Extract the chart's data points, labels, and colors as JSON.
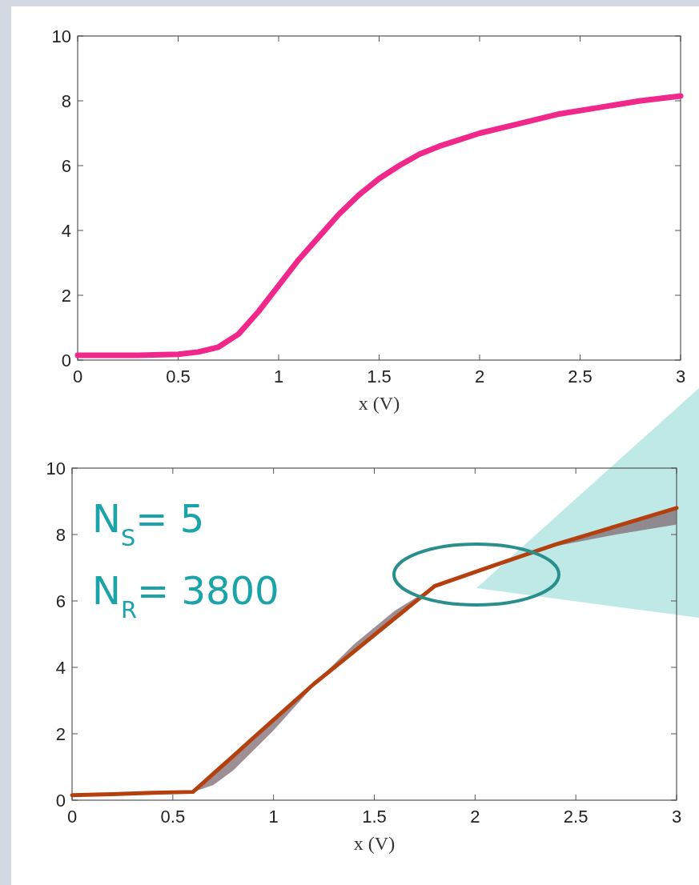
{
  "chart_data": [
    {
      "type": "line",
      "xlabel": "x (V)",
      "xlim": [
        0,
        3
      ],
      "ylim": [
        0,
        10
      ],
      "xticks": [
        0,
        0.5,
        1,
        1.5,
        2,
        2.5,
        3
      ],
      "yticks": [
        0,
        2,
        4,
        6,
        8,
        10
      ],
      "x": [
        0,
        0.3,
        0.5,
        0.6,
        0.7,
        0.8,
        0.9,
        1.0,
        1.1,
        1.2,
        1.3,
        1.4,
        1.5,
        1.6,
        1.7,
        1.8,
        1.9,
        2.0,
        2.2,
        2.4,
        2.6,
        2.8,
        3.0
      ],
      "series": [
        {
          "color": "#f0288c",
          "values": [
            0.15,
            0.15,
            0.18,
            0.25,
            0.4,
            0.8,
            1.5,
            2.3,
            3.1,
            3.8,
            4.5,
            5.1,
            5.6,
            6.0,
            6.35,
            6.6,
            6.8,
            7.0,
            7.3,
            7.6,
            7.8,
            8.0,
            8.15
          ]
        }
      ]
    },
    {
      "type": "line",
      "xlabel": "x (V)",
      "xlim": [
        0,
        3
      ],
      "ylim": [
        0,
        10
      ],
      "xticks": [
        0,
        0.5,
        1,
        1.5,
        2,
        2.5,
        3
      ],
      "yticks": [
        0,
        2,
        4,
        6,
        8,
        10
      ],
      "x": [
        0,
        0.2,
        0.4,
        0.6,
        0.7,
        0.8,
        0.9,
        1.0,
        1.2,
        1.4,
        1.6,
        1.8,
        2.1,
        2.4,
        2.7,
        3.0
      ],
      "series": [
        {
          "color": "#b5400f",
          "values": [
            0.15,
            0.18,
            0.22,
            0.25,
            0.79,
            1.33,
            1.88,
            2.42,
            3.5,
            4.48,
            5.47,
            6.45,
            7.08,
            7.7,
            8.25,
            8.8
          ],
          "lower": [
            0.15,
            0.18,
            0.22,
            0.25,
            0.45,
            0.9,
            1.5,
            2.1,
            3.45,
            4.45,
            5.45,
            6.4,
            7.05,
            7.65,
            8.0,
            8.3
          ],
          "upper": [
            0.15,
            0.18,
            0.22,
            0.25,
            0.79,
            1.33,
            1.88,
            2.45,
            3.5,
            4.7,
            5.7,
            6.45,
            7.08,
            7.7,
            8.25,
            8.8
          ]
        }
      ],
      "annotations": [
        "N$_{S}$= 5",
        "N$_{R}$= 3800"
      ]
    }
  ]
}
